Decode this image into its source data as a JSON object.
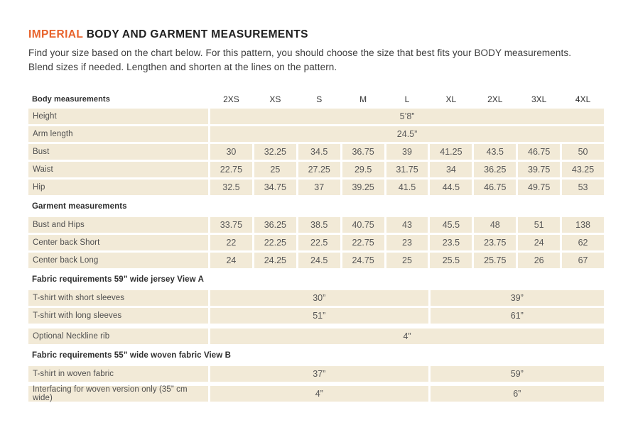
{
  "page": {
    "title_accent": "IMPERIAL",
    "title_rest": "BODY AND GARMENT MEASUREMENTS",
    "intro": "Find your size based on the chart below. For this pattern, you should choose the size that best fits your BODY measurements. Blend sizes if needed. Lengthen and shorten at the lines on the pattern."
  },
  "colors": {
    "accent_orange": "#e8632c",
    "cell_beige": "#f2ead7",
    "title_ink": "#1f1f1f",
    "cell_text": "#575757"
  },
  "table": {
    "header": {
      "label": "Body measurements",
      "sizes": [
        "2XS",
        "XS",
        "S",
        "M",
        "L",
        "XL",
        "2XL",
        "3XL",
        "4XL"
      ]
    },
    "merged_rows": [
      {
        "label": "Height",
        "value": "5’8”"
      },
      {
        "label": "Arm length",
        "value": "24.5”"
      }
    ],
    "body_rows": [
      {
        "label": "Bust",
        "values": [
          30,
          32.25,
          34.5,
          36.75,
          39,
          41.25,
          43.5,
          46.75,
          50
        ]
      },
      {
        "label": "Waist",
        "values": [
          22.75,
          25,
          27.25,
          29.5,
          31.75,
          34,
          36.25,
          39.75,
          43.25
        ]
      },
      {
        "label": "Hip",
        "values": [
          32.5,
          34.75,
          37,
          39.25,
          41.5,
          44.5,
          46.75,
          49.75,
          53
        ]
      }
    ],
    "garment_section_label": "Garment measurements",
    "garment_rows": [
      {
        "label": "Bust and Hips",
        "values": [
          33.75,
          36.25,
          38.5,
          40.75,
          43,
          45.5,
          48,
          51,
          138
        ]
      },
      {
        "label": "Center back Short",
        "values": [
          22,
          22.25,
          22.5,
          22.75,
          23,
          23.5,
          23.75,
          24,
          62
        ]
      },
      {
        "label": "Center back Long",
        "values": [
          24,
          24.25,
          24.5,
          24.75,
          25,
          25.5,
          25.75,
          26,
          67
        ]
      }
    ],
    "fabric_a_section_label": "Fabric requirements 59” wide jersey View A",
    "fabric_a_rows": [
      {
        "label": "T-shirt with short sleeves",
        "left": "30”",
        "right": "39”"
      },
      {
        "label": "T-shirt with long sleeves",
        "left": "51”",
        "right": "61”"
      }
    ],
    "neckline_row": {
      "label": "Optional Neckline rib",
      "value": "4”"
    },
    "fabric_b_section_label": "Fabric requirements 55”  wide woven fabric View B",
    "fabric_b_rows": [
      {
        "label": "T-shirt in woven fabric",
        "left": "37”",
        "right": "59”"
      },
      {
        "label": "Interfacing for woven version only (35” cm wide)",
        "left": "4”",
        "right": "6”"
      }
    ]
  }
}
